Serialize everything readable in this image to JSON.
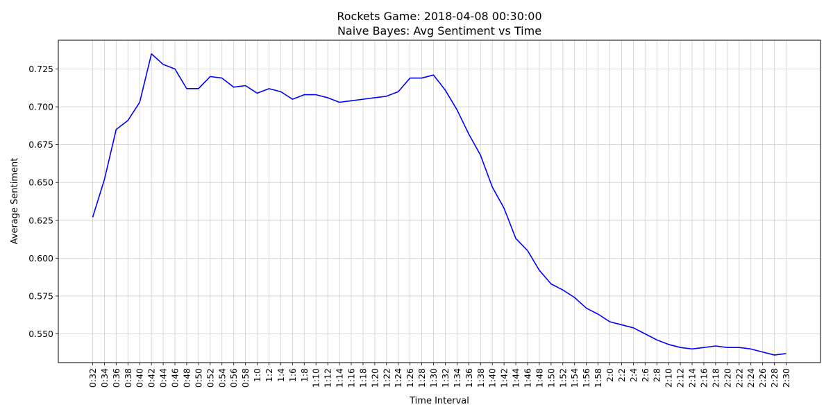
{
  "chart_data": {
    "type": "line",
    "title": "Rockets Game: 2018-04-08 00:30:00",
    "subtitle": "Naive Bayes: Avg Sentiment vs Time",
    "xlabel": "Time Interval",
    "ylabel": "Average Sentiment",
    "ylim": [
      0.531,
      0.744
    ],
    "yticks": [
      0.55,
      0.575,
      0.6,
      0.625,
      0.65,
      0.675,
      0.7,
      0.725
    ],
    "grid": true,
    "line_color": "#0000ff",
    "categories": [
      "0:32",
      "0:34",
      "0:36",
      "0:38",
      "0:40",
      "0:42",
      "0:44",
      "0:46",
      "0:48",
      "0:50",
      "0:52",
      "0:54",
      "0:56",
      "0:58",
      "1:0",
      "1:2",
      "1:4",
      "1:6",
      "1:8",
      "1:10",
      "1:12",
      "1:14",
      "1:16",
      "1:18",
      "1:20",
      "1:22",
      "1:24",
      "1:26",
      "1:28",
      "1:30",
      "1:32",
      "1:34",
      "1:36",
      "1:38",
      "1:40",
      "1:42",
      "1:44",
      "1:46",
      "1:48",
      "1:50",
      "1:52",
      "1:54",
      "1:56",
      "1:58",
      "2:0",
      "2:2",
      "2:4",
      "2:6",
      "2:8",
      "2:10",
      "2:12",
      "2:14",
      "2:16",
      "2:18",
      "2:20",
      "2:22",
      "2:24",
      "2:26",
      "2:28",
      "2:30"
    ],
    "values": [
      0.627,
      0.652,
      0.685,
      0.691,
      0.703,
      0.735,
      0.728,
      0.725,
      0.712,
      0.712,
      0.72,
      0.719,
      0.713,
      0.714,
      0.709,
      0.712,
      0.71,
      0.705,
      0.708,
      0.708,
      0.706,
      0.703,
      0.704,
      0.705,
      0.706,
      0.707,
      0.71,
      0.719,
      0.719,
      0.721,
      0.711,
      0.698,
      0.682,
      0.668,
      0.647,
      0.633,
      0.613,
      0.605,
      0.592,
      0.583,
      0.579,
      0.574,
      0.567,
      0.563,
      0.558,
      0.556,
      0.554,
      0.55,
      0.546,
      0.543,
      0.541,
      0.54,
      0.541,
      0.542,
      0.541,
      0.541,
      0.54,
      0.538,
      0.536,
      0.537
    ]
  }
}
